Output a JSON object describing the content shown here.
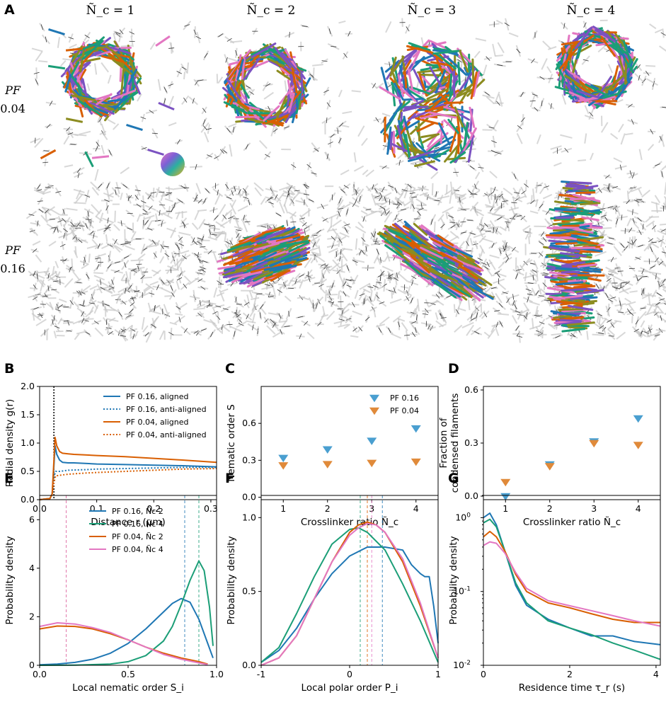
{
  "panel_a": {
    "letter": "A",
    "col_titles": [
      "Ñ_c = 1",
      "Ñ_c = 2",
      "Ñ_c = 3",
      "Ñ_c = 4"
    ],
    "row_labels": [
      {
        "top": "PF",
        "bottom": "0.04"
      },
      {
        "top": "PF",
        "bottom": "0.16"
      }
    ]
  },
  "colors": {
    "pf016": "#1f77b4",
    "pf004": "#d95f02",
    "pf016_n4": "#1b9e77",
    "pf004_n4": "#e377c2",
    "tri016": "#4a9fd0",
    "tri004": "#e08a3a"
  },
  "chart_data": [
    {
      "id": "B",
      "type": "line",
      "xlabel": "Distance r (μm)",
      "ylabel": "Radial density g(r)",
      "xlim": [
        0,
        0.31
      ],
      "ylim": [
        0,
        2.0
      ],
      "xticks": [
        "0.0",
        "0.1",
        "0.2",
        "0.3"
      ],
      "xtick_values": [
        0,
        0.1,
        0.2,
        0.3
      ],
      "yticks": [
        "0.0",
        "0.5",
        "1.0",
        "1.5",
        "2.0"
      ],
      "ytick_values": [
        0,
        0.5,
        1.0,
        1.5,
        2.0
      ],
      "vline": 0.025,
      "legend_position": "top-right",
      "series": [
        {
          "name": "PF 0.16, aligned",
          "style": "solid",
          "color": "#1f77b4",
          "x": [
            0,
            0.018,
            0.022,
            0.025,
            0.027,
            0.03,
            0.035,
            0.04,
            0.05,
            0.06,
            0.08,
            0.1,
            0.15,
            0.2,
            0.25,
            0.31
          ],
          "y": [
            0,
            0.02,
            0.1,
            0.6,
            0.95,
            0.8,
            0.7,
            0.66,
            0.65,
            0.65,
            0.64,
            0.63,
            0.62,
            0.61,
            0.6,
            0.58
          ]
        },
        {
          "name": "PF 0.16, anti-aligned",
          "style": "dotted",
          "color": "#1f77b4",
          "x": [
            0,
            0.018,
            0.022,
            0.025,
            0.028,
            0.035,
            0.05,
            0.08,
            0.1,
            0.15,
            0.2,
            0.25,
            0.31
          ],
          "y": [
            0,
            0.02,
            0.1,
            0.4,
            0.5,
            0.5,
            0.52,
            0.53,
            0.54,
            0.55,
            0.56,
            0.57,
            0.57
          ]
        },
        {
          "name": "PF 0.04, aligned",
          "style": "solid",
          "color": "#d95f02",
          "x": [
            0,
            0.018,
            0.022,
            0.025,
            0.027,
            0.03,
            0.035,
            0.04,
            0.05,
            0.06,
            0.08,
            0.1,
            0.15,
            0.2,
            0.25,
            0.31
          ],
          "y": [
            0,
            0.02,
            0.1,
            0.7,
            1.1,
            0.95,
            0.85,
            0.82,
            0.81,
            0.8,
            0.79,
            0.78,
            0.76,
            0.73,
            0.7,
            0.66
          ]
        },
        {
          "name": "PF 0.04, anti-aligned",
          "style": "dotted",
          "color": "#d95f02",
          "x": [
            0,
            0.018,
            0.022,
            0.025,
            0.028,
            0.035,
            0.05,
            0.08,
            0.1,
            0.15,
            0.2,
            0.25,
            0.31
          ],
          "y": [
            0,
            0.02,
            0.1,
            0.3,
            0.42,
            0.43,
            0.45,
            0.47,
            0.48,
            0.5,
            0.52,
            0.54,
            0.55
          ]
        }
      ]
    },
    {
      "id": "C",
      "type": "scatter",
      "xlabel": "Crosslinker ratio Ñ_c",
      "ylabel": "Nematic order S",
      "xlim": [
        0.5,
        4.5
      ],
      "ylim": [
        -0.02,
        0.9
      ],
      "xticks": [
        "1",
        "2",
        "3",
        "4"
      ],
      "xtick_values": [
        1,
        2,
        3,
        4
      ],
      "yticks": [
        "0.0",
        "0.3",
        "0.6"
      ],
      "ytick_values": [
        0,
        0.3,
        0.6
      ],
      "legend_position": "top-right",
      "series": [
        {
          "name": "PF 0.16",
          "color": "#4a9fd0",
          "x": [
            1,
            2,
            3,
            4
          ],
          "y": [
            0.32,
            0.39,
            0.46,
            0.56
          ]
        },
        {
          "name": "PF 0.04",
          "color": "#e08a3a",
          "x": [
            1,
            2,
            3,
            4
          ],
          "y": [
            0.26,
            0.27,
            0.28,
            0.29
          ]
        }
      ]
    },
    {
      "id": "D",
      "type": "scatter",
      "xlabel": "Crosslinker ratio Ñ_c",
      "ylabel": "Fraction of condensed filaments",
      "ylabel_lines": [
        "Fraction of",
        "condensed filaments"
      ],
      "xlim": [
        0.5,
        4.5
      ],
      "ylim": [
        -0.02,
        0.62
      ],
      "xticks": [
        "1",
        "2",
        "3",
        "4"
      ],
      "xtick_values": [
        1,
        2,
        3,
        4
      ],
      "yticks": [
        "0.0",
        "0.3",
        "0.6"
      ],
      "ytick_values": [
        0,
        0.3,
        0.6
      ],
      "series": [
        {
          "name": "PF 0.16",
          "color": "#4a9fd0",
          "x": [
            1,
            2,
            3,
            4
          ],
          "y": [
            0.0,
            0.18,
            0.31,
            0.44
          ]
        },
        {
          "name": "PF 0.04",
          "color": "#e08a3a",
          "x": [
            1,
            2,
            3,
            4
          ],
          "y": [
            0.08,
            0.17,
            0.3,
            0.29
          ]
        }
      ]
    },
    {
      "id": "E",
      "type": "line",
      "xlabel": "Local nematic order S_i",
      "ylabel": "Probability density",
      "xlim": [
        0,
        1.0
      ],
      "ylim": [
        0,
        7
      ],
      "xticks": [
        "0.0",
        "0.5",
        "1.0"
      ],
      "xtick_values": [
        0,
        0.5,
        1.0
      ],
      "yticks": [
        "0",
        "2",
        "4",
        "6"
      ],
      "ytick_values": [
        0,
        2,
        4,
        6
      ],
      "legend_position": "top-center",
      "series": [
        {
          "name": "PF 0.16, Ñc 2",
          "color": "#1f77b4",
          "vline": 0.82,
          "x": [
            0,
            0.1,
            0.2,
            0.3,
            0.4,
            0.5,
            0.6,
            0.7,
            0.75,
            0.8,
            0.85,
            0.9,
            0.95,
            0.98
          ],
          "y": [
            0.02,
            0.05,
            0.12,
            0.25,
            0.5,
            0.9,
            1.5,
            2.2,
            2.55,
            2.75,
            2.6,
            1.9,
            0.9,
            0.3
          ]
        },
        {
          "name": "PF 0.16, Ñc 4",
          "color": "#1b9e77",
          "vline": 0.9,
          "x": [
            0,
            0.2,
            0.4,
            0.5,
            0.6,
            0.7,
            0.75,
            0.8,
            0.85,
            0.9,
            0.93,
            0.96,
            0.98
          ],
          "y": [
            0,
            0.01,
            0.05,
            0.15,
            0.4,
            1.0,
            1.6,
            2.5,
            3.5,
            4.3,
            3.9,
            2.4,
            0.8
          ]
        },
        {
          "name": "PF 0.04, Ñc 2",
          "color": "#d95f02",
          "vline": 0.15,
          "x": [
            0,
            0.1,
            0.2,
            0.3,
            0.4,
            0.5,
            0.6,
            0.7,
            0.8,
            0.9,
            0.95
          ],
          "y": [
            1.5,
            1.62,
            1.6,
            1.5,
            1.3,
            1.05,
            0.75,
            0.5,
            0.3,
            0.15,
            0.05
          ]
        },
        {
          "name": "PF 0.04, Ñc 4",
          "color": "#e377c2",
          "vline": 0.15,
          "x": [
            0,
            0.1,
            0.2,
            0.3,
            0.4,
            0.5,
            0.6,
            0.7,
            0.8,
            0.9,
            0.95
          ],
          "y": [
            1.6,
            1.75,
            1.7,
            1.55,
            1.35,
            1.05,
            0.75,
            0.45,
            0.25,
            0.1,
            0.03
          ]
        }
      ]
    },
    {
      "id": "F",
      "type": "line",
      "xlabel": "Local polar order P_i",
      "ylabel": "Probability density",
      "xlim": [
        -1,
        1
      ],
      "ylim": [
        0,
        1.15
      ],
      "xticks": [
        "-1",
        "0",
        "1"
      ],
      "xtick_values": [
        -1,
        0,
        1
      ],
      "yticks": [
        "0.0",
        "0.5",
        "1.0"
      ],
      "ytick_values": [
        0,
        0.5,
        1.0
      ],
      "series": [
        {
          "name": "PF 0.16, Ñc 2",
          "color": "#1f77b4",
          "vline": 0.37,
          "x": [
            -1,
            -0.8,
            -0.6,
            -0.4,
            -0.2,
            0,
            0.2,
            0.4,
            0.6,
            0.7,
            0.8,
            0.85,
            0.9,
            0.95,
            1.0
          ],
          "y": [
            0.02,
            0.1,
            0.25,
            0.45,
            0.62,
            0.74,
            0.8,
            0.8,
            0.78,
            0.68,
            0.62,
            0.6,
            0.6,
            0.4,
            0.15
          ]
        },
        {
          "name": "PF 0.16, Ñc 4",
          "color": "#1b9e77",
          "vline": 0.12,
          "x": [
            -1,
            -0.8,
            -0.6,
            -0.4,
            -0.2,
            0,
            0.1,
            0.2,
            0.4,
            0.6,
            0.8,
            1.0
          ],
          "y": [
            0.02,
            0.12,
            0.35,
            0.6,
            0.82,
            0.92,
            0.93,
            0.9,
            0.78,
            0.55,
            0.3,
            0.02
          ]
        },
        {
          "name": "PF 0.04, Ñc 2",
          "color": "#d95f02",
          "vline": 0.2,
          "x": [
            -1,
            -0.8,
            -0.6,
            -0.4,
            -0.2,
            0,
            0.1,
            0.2,
            0.3,
            0.4,
            0.6,
            0.8,
            1.0
          ],
          "y": [
            0.0,
            0.05,
            0.2,
            0.45,
            0.7,
            0.9,
            0.95,
            0.97,
            0.95,
            0.9,
            0.7,
            0.4,
            0.05
          ]
        },
        {
          "name": "PF 0.04, Ñc 4",
          "color": "#e377c2",
          "vline": 0.25,
          "x": [
            -1,
            -0.8,
            -0.6,
            -0.4,
            -0.2,
            0,
            0.1,
            0.2,
            0.3,
            0.4,
            0.6,
            0.8,
            1.0
          ],
          "y": [
            0.0,
            0.05,
            0.2,
            0.45,
            0.7,
            0.88,
            0.93,
            0.96,
            0.95,
            0.9,
            0.72,
            0.42,
            0.05
          ]
        }
      ]
    },
    {
      "id": "G",
      "type": "line",
      "yscale": "log",
      "xlabel": "Residence time τ_r (s)",
      "ylabel": "Probability density",
      "xlim": [
        0,
        4.1
      ],
      "ylim": [
        0.01,
        2.0
      ],
      "xticks": [
        "0",
        "2",
        "4"
      ],
      "xtick_values": [
        0,
        2,
        4
      ],
      "yticks": [
        "10^0",
        "10^-1",
        "10^-2"
      ],
      "ytick_values": [
        1,
        0.1,
        0.01
      ],
      "series": [
        {
          "name": "PF 0.16, Ñc 2",
          "color": "#1f77b4",
          "x": [
            0,
            0.15,
            0.3,
            0.5,
            0.75,
            1.0,
            1.5,
            2.0,
            2.5,
            3.0,
            3.5,
            4.1
          ],
          "y": [
            1.0,
            1.15,
            0.8,
            0.35,
            0.12,
            0.065,
            0.042,
            0.032,
            0.025,
            0.025,
            0.021,
            0.019
          ]
        },
        {
          "name": "PF 0.16, Ñc 4",
          "color": "#1b9e77",
          "x": [
            0,
            0.15,
            0.3,
            0.5,
            0.75,
            1.0,
            1.5,
            2.0,
            2.5,
            3.0,
            3.5,
            4.1
          ],
          "y": [
            0.85,
            0.95,
            0.75,
            0.35,
            0.13,
            0.07,
            0.04,
            0.032,
            0.026,
            0.02,
            0.016,
            0.012
          ]
        },
        {
          "name": "PF 0.04, Ñc 2",
          "color": "#d95f02",
          "x": [
            0,
            0.15,
            0.3,
            0.5,
            0.75,
            1.0,
            1.5,
            2.0,
            2.5,
            3.0,
            3.5,
            4.1
          ],
          "y": [
            0.55,
            0.65,
            0.55,
            0.35,
            0.17,
            0.1,
            0.07,
            0.06,
            0.05,
            0.042,
            0.038,
            0.038
          ]
        },
        {
          "name": "PF 0.04, Ñc 4",
          "color": "#e377c2",
          "x": [
            0,
            0.15,
            0.3,
            0.5,
            0.75,
            1.0,
            1.5,
            2.0,
            2.5,
            3.0,
            3.5,
            4.1
          ],
          "y": [
            0.42,
            0.47,
            0.45,
            0.33,
            0.18,
            0.11,
            0.075,
            0.064,
            0.055,
            0.047,
            0.04,
            0.034
          ]
        }
      ]
    }
  ]
}
